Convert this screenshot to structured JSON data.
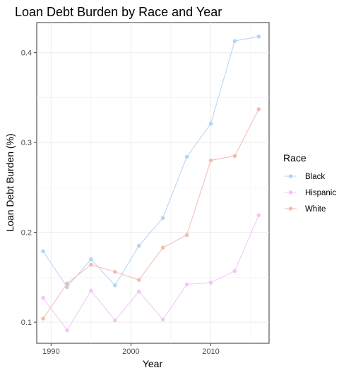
{
  "chart_data": {
    "type": "line",
    "title": "Loan Debt Burden by Race and Year",
    "xlabel": "Year",
    "ylabel": "Loan Debt Burden (%)",
    "xlim": [
      1988.2,
      2017.3
    ],
    "ylim": [
      0.0765,
      0.4335
    ],
    "x_ticks": [
      1990,
      2000,
      2010
    ],
    "x_tick_labels": [
      "1990",
      "2000",
      "2010"
    ],
    "y_ticks": [
      0.1,
      0.2,
      0.3,
      0.4
    ],
    "y_tick_labels": [
      "0.1",
      "0.2",
      "0.3",
      "0.4"
    ],
    "grid": true,
    "legend": {
      "title": "Race",
      "position": "right"
    },
    "x": [
      1989,
      1992,
      1995,
      1998,
      2001,
      2004,
      2007,
      2010,
      2013,
      2016
    ],
    "series": [
      {
        "name": "Black",
        "color": "#b3d4f5",
        "values": [
          0.179,
          0.139,
          0.17,
          0.141,
          0.185,
          0.216,
          0.284,
          0.321,
          0.413,
          0.418
        ]
      },
      {
        "name": "Hispanic",
        "color": "#f2c6f5",
        "values": [
          0.127,
          0.091,
          0.135,
          0.102,
          0.134,
          0.103,
          0.142,
          0.144,
          0.157,
          0.219
        ]
      },
      {
        "name": "White",
        "color": "#f7b9b3",
        "values": [
          0.104,
          0.143,
          0.164,
          0.156,
          0.147,
          0.183,
          0.197,
          0.28,
          0.285,
          0.337
        ]
      }
    ]
  }
}
